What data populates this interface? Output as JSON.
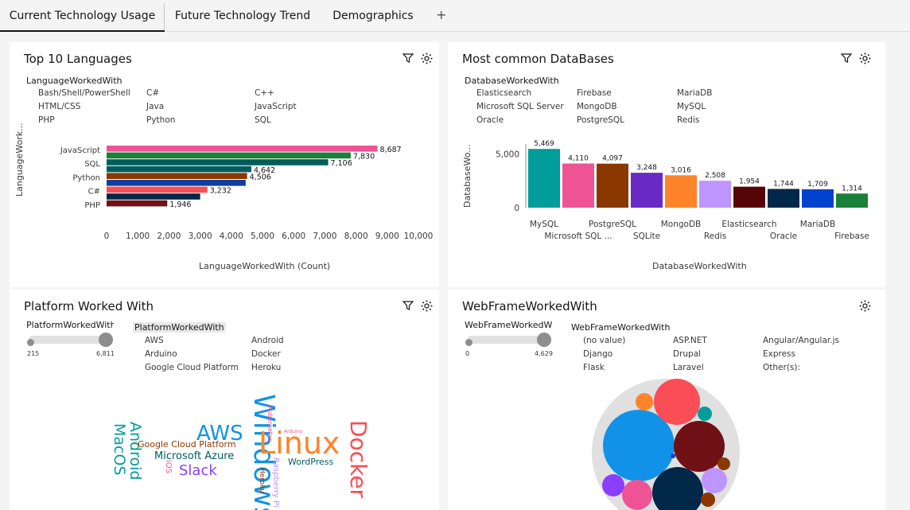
{
  "tabs": [
    {
      "label": "Current Technology Usage"
    },
    {
      "label": "Future Technology Trend"
    },
    {
      "label": "Demographics"
    }
  ],
  "tab_add": "+",
  "panel_languages": {
    "title": "Top 10 Languages",
    "legend_title": "LanguageWorkedWith",
    "legend_items": [
      "Bash/Shell/PowerShell",
      "C#",
      "C++",
      "HTML/CSS",
      "Java",
      "JavaScript",
      "PHP",
      "Python",
      "SQL"
    ],
    "yaxis_title": "LanguageWork...",
    "xaxis_title": "LanguageWorkedWith (Count)"
  },
  "panel_databases": {
    "title": "Most common DataBases",
    "legend_title": "DatabaseWorkedWith",
    "legend_items": [
      "Elasticsearch",
      "Firebase",
      "MariaDB",
      "Microsoft SQL Server",
      "MongoDB",
      "MySQL",
      "Oracle",
      "PostgreSQL",
      "Redis"
    ],
    "yaxis_title": "DatabaseWo...",
    "xaxis_title": "DatabaseWorkedWith"
  },
  "panel_platform": {
    "title": "Platform Worked With",
    "slider_label": "PlatformWorkedWith",
    "slider_min": "215",
    "slider_max": "6,811",
    "legend_title": "PlatformWorkedWith",
    "legend_items": [
      "AWS",
      "Android",
      "Arduino",
      "Docker",
      "Google Cloud Platform",
      "Heroku"
    ]
  },
  "panel_webframe": {
    "title": "WebFrameWorkedWith",
    "slider_label": "WebFrameWorkedW",
    "slider_min": "0",
    "slider_max": "4,629",
    "legend_title": "WebFrameWorkedWith",
    "legend_items": [
      "(no value)",
      "ASP.NET",
      "Angular/Angular.js",
      "Django",
      "Drupal",
      "Express",
      "Flask",
      "Laravel",
      "Other(s):"
    ]
  },
  "chart_data": [
    {
      "type": "bar",
      "orientation": "horizontal",
      "title": "Top 10 Languages",
      "xlabel": "LanguageWorkedWith (Count)",
      "ylabel": "LanguageWork...",
      "xlim": [
        0,
        10000
      ],
      "xticks": [
        "0",
        "1,000",
        "2,000",
        "3,000",
        "4,000",
        "5,000",
        "6,000",
        "7,000",
        "8,000",
        "9,000",
        "10,000"
      ],
      "ytick_labels": [
        "JavaScript",
        "SQL",
        "Python",
        "C#",
        "PHP"
      ],
      "values": [
        8687,
        7830,
        7106,
        4642,
        4506,
        4460,
        3232,
        3000,
        1946
      ],
      "value_labels": [
        "8,687",
        "7,830",
        "7,106",
        "4,642",
        "4,506",
        "",
        "3,232",
        "",
        "1,946"
      ],
      "colors": [
        "#ee5396",
        "#198038",
        "#005d5d",
        "#005d5d",
        "#8a3800",
        "#0f3ea1",
        "#fa4d56",
        "#012749",
        "#6f1114"
      ]
    },
    {
      "type": "bar",
      "title": "Most common DataBases",
      "xlabel": "DatabaseWorkedWith",
      "ylabel": "DatabaseWo...",
      "ylim": [
        0,
        6000
      ],
      "yticks": [
        "0",
        "5,000"
      ],
      "categories": [
        "MySQL",
        "Microsoft SQL ...",
        "PostgreSQL",
        "SQLite",
        "MongoDB",
        "Redis",
        "Elasticsearch",
        "Oracle",
        "MariaDB",
        "Firebase"
      ],
      "values": [
        5469,
        4110,
        4097,
        3248,
        3016,
        2508,
        1954,
        1744,
        1709,
        1314
      ],
      "value_labels": [
        "5,469",
        "4,110",
        "4,097",
        "3,248",
        "3,016",
        "2,508",
        "1,954",
        "1,744",
        "1,709",
        "1,314"
      ],
      "colors": [
        "#009d9a",
        "#ee5396",
        "#8a3800",
        "#6929c4",
        "#ff832b",
        "#be95ff",
        "#570408",
        "#012749",
        "#0043ce",
        "#198038"
      ]
    }
  ],
  "wordcloud": [
    {
      "text": "Windows",
      "color": "#1192e8"
    },
    {
      "text": "Linux",
      "color": "#ff832b"
    },
    {
      "text": "Docker",
      "color": "#fa4d56"
    },
    {
      "text": "AWS",
      "color": "#1192e8"
    },
    {
      "text": "Android",
      "color": "#009d9a"
    },
    {
      "text": "MacOS",
      "color": "#009d9a"
    },
    {
      "text": "Google Cloud Platform",
      "color": "#8a3800"
    },
    {
      "text": "Microsoft Azure",
      "color": "#005d5d"
    },
    {
      "text": "Slack",
      "color": "#8a3ffc"
    },
    {
      "text": "iOS",
      "color": "#ee5396"
    },
    {
      "text": "Kubernetes",
      "color": "#ee5396"
    },
    {
      "text": "Arduino",
      "color": "#ee5396"
    },
    {
      "text": "Heroku",
      "color": "#8a3800"
    },
    {
      "text": "Raspberry Pi",
      "color": "#be95ff"
    },
    {
      "text": "WordPress",
      "color": "#005d5d"
    }
  ],
  "colors": {
    "accent": "#161616",
    "panel_bg": "#ffffff",
    "page_bg": "#f4f4f4"
  }
}
